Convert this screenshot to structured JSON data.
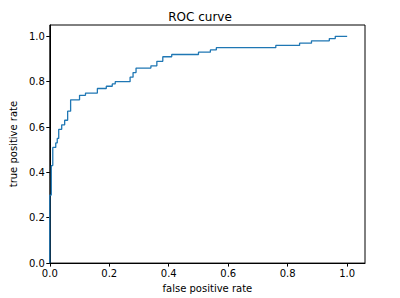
{
  "chart_data": {
    "type": "line",
    "title": "ROC curve",
    "x_label": "false positive rate",
    "y_label": "true positive rate",
    "x": [
      0,
      0,
      0.005,
      0.005,
      0.01,
      0.01,
      0.02,
      0.02,
      0.025,
      0.025,
      0.03,
      0.03,
      0.04,
      0.04,
      0.05,
      0.05,
      0.06,
      0.06,
      0.07,
      0.07,
      0.1,
      0.1,
      0.12,
      0.12,
      0.16,
      0.16,
      0.19,
      0.19,
      0.21,
      0.21,
      0.22,
      0.22,
      0.27,
      0.27,
      0.28,
      0.28,
      0.29,
      0.29,
      0.34,
      0.34,
      0.36,
      0.36,
      0.38,
      0.38,
      0.41,
      0.41,
      0.5,
      0.5,
      0.54,
      0.54,
      0.56,
      0.56,
      0.76,
      0.76,
      0.84,
      0.84,
      0.88,
      0.88,
      0.94,
      0.94,
      0.96,
      0.96,
      1.0
    ],
    "values": [
      0,
      0.3,
      0.3,
      0.43,
      0.43,
      0.51,
      0.51,
      0.53,
      0.53,
      0.55,
      0.55,
      0.59,
      0.59,
      0.61,
      0.61,
      0.63,
      0.63,
      0.67,
      0.67,
      0.72,
      0.72,
      0.74,
      0.74,
      0.75,
      0.75,
      0.77,
      0.77,
      0.78,
      0.78,
      0.79,
      0.79,
      0.8,
      0.8,
      0.82,
      0.82,
      0.84,
      0.84,
      0.86,
      0.86,
      0.87,
      0.87,
      0.89,
      0.89,
      0.91,
      0.91,
      0.92,
      0.92,
      0.93,
      0.93,
      0.94,
      0.94,
      0.95,
      0.95,
      0.96,
      0.96,
      0.97,
      0.97,
      0.98,
      0.98,
      0.99,
      0.99,
      1.0,
      1.0
    ],
    "color": "#1f77b4",
    "xlim": [
      0,
      1.06
    ],
    "ylim": [
      0,
      1.05
    ],
    "xticks": [
      {
        "value": 0,
        "label": "0.0"
      },
      0.2,
      0.4,
      0.6,
      0.8,
      {
        "value": 1,
        "label": "1.0"
      }
    ],
    "yticks": [
      {
        "value": 0,
        "label": "0.0"
      },
      0.2,
      0.4,
      0.6,
      0.8,
      {
        "value": 1,
        "label": "1.0"
      }
    ],
    "grid": false
  }
}
